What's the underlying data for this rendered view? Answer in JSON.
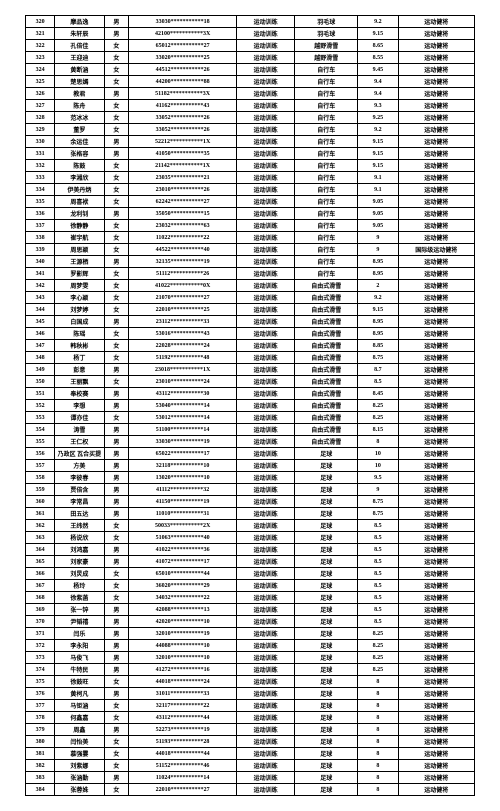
{
  "table": {
    "columns": [
      "c0",
      "c1",
      "c2",
      "c3",
      "c4",
      "c5",
      "c6",
      "c7"
    ],
    "rows": [
      [
        "320",
        "摩品逸",
        "男",
        "33030***********18",
        "运动训练",
        "羽毛球",
        "9.2",
        "运动健将"
      ],
      [
        "321",
        "朱轩辰",
        "男",
        "42100***********3X",
        "运动训练",
        "羽毛球",
        "9.15",
        "运动健将"
      ],
      [
        "322",
        "孔倍佳",
        "女",
        "65012***********27",
        "运动训练",
        "越野滑雪",
        "8.65",
        "运动健将"
      ],
      [
        "323",
        "王迎迪",
        "女",
        "33020***********25",
        "运动训练",
        "越野滑雪",
        "8.55",
        "运动健将"
      ],
      [
        "324",
        "黄断涵",
        "女",
        "44512***********26",
        "运动训练",
        "自行车",
        "9.45",
        "运动健将"
      ],
      [
        "325",
        "楚思嫣",
        "女",
        "44200***********88",
        "运动训练",
        "自行车",
        "9.4",
        "运动健将"
      ],
      [
        "326",
        "教君",
        "男",
        "51182***********3X",
        "运动训练",
        "自行车",
        "9.4",
        "运动健将"
      ],
      [
        "327",
        "陈舟",
        "女",
        "41162***********43",
        "运动训练",
        "自行车",
        "9.3",
        "运动健将"
      ],
      [
        "328",
        "范冰冰",
        "女",
        "33052***********26",
        "运动训练",
        "自行车",
        "9.25",
        "运动健将"
      ],
      [
        "329",
        "董罗",
        "女",
        "33052***********26",
        "运动训练",
        "自行车",
        "9.2",
        "运动健将"
      ],
      [
        "330",
        "余运佳",
        "男",
        "52212***********1X",
        "运动训练",
        "自行车",
        "9.15",
        "运动健将"
      ],
      [
        "331",
        "张格容",
        "男",
        "41050***********35",
        "运动训练",
        "自行车",
        "9.15",
        "运动健将"
      ],
      [
        "332",
        "陈鼓",
        "女",
        "21142***********1X",
        "运动训练",
        "自行车",
        "9.15",
        "运动健将"
      ],
      [
        "333",
        "李湘欣",
        "女",
        "23035***********21",
        "运动训练",
        "自行车",
        "9.1",
        "运动健将"
      ],
      [
        "334",
        "伊美丹炳",
        "女",
        "23010***********26",
        "运动训练",
        "自行车",
        "9.1",
        "运动健将"
      ],
      [
        "335",
        "周喜袱",
        "女",
        "62242***********27",
        "运动训练",
        "自行车",
        "9.05",
        "运动健将"
      ],
      [
        "336",
        "龙利钊",
        "男",
        "35050***********15",
        "运动训练",
        "自行车",
        "9.05",
        "运动健将"
      ],
      [
        "337",
        "徐静静",
        "女",
        "23032***********63",
        "运动训练",
        "自行车",
        "9.05",
        "运动健将"
      ],
      [
        "338",
        "崔宇航",
        "女",
        "11022***********22",
        "运动训练",
        "自行车",
        "9",
        "运动健将"
      ],
      [
        "339",
        "周思颖",
        "女",
        "44522***********40",
        "运动训练",
        "自行车",
        "9",
        "国际级运动健将"
      ],
      [
        "340",
        "王源栖",
        "男",
        "32135***********19",
        "运动训练",
        "自行车",
        "8.95",
        "运动健将"
      ],
      [
        "341",
        "罗影辉",
        "女",
        "51112***********26",
        "运动训练",
        "自行车",
        "8.95",
        "运动健将"
      ],
      [
        "342",
        "周梦雯",
        "女",
        "41022***********0X",
        "运动训练",
        "自由式滑雪",
        "2",
        "运动健将"
      ],
      [
        "343",
        "李心颖",
        "女",
        "21070***********27",
        "运动训练",
        "自由式滑雪",
        "9.2",
        "运动健将"
      ],
      [
        "344",
        "刘梦婷",
        "女",
        "22010***********25",
        "运动训练",
        "自由式滑雪",
        "9.15",
        "运动健将"
      ],
      [
        "345",
        "白国成",
        "男",
        "23112***********33",
        "运动训练",
        "自由式滑雪",
        "8.95",
        "运动健将"
      ],
      [
        "346",
        "陈瑶",
        "女",
        "53016***********43",
        "运动训练",
        "自由式滑雪",
        "8.95",
        "运动健将"
      ],
      [
        "347",
        "韩秋彬",
        "女",
        "22028***********24",
        "运动训练",
        "自由式滑雪",
        "8.85",
        "运动健将"
      ],
      [
        "348",
        "杨丁",
        "女",
        "51192***********48",
        "运动训练",
        "自由式滑雪",
        "8.75",
        "运动健将"
      ],
      [
        "349",
        "彭意",
        "男",
        "23018***********1X",
        "运动训练",
        "自由式滑雪",
        "8.7",
        "运动健将"
      ],
      [
        "350",
        "王丽飘",
        "女",
        "23010***********24",
        "运动训练",
        "自由式滑雪",
        "8.5",
        "运动健将"
      ],
      [
        "351",
        "奉校赛",
        "男",
        "43112***********30",
        "运动训练",
        "自由式滑雪",
        "8.45",
        "运动健将"
      ],
      [
        "352",
        "李想",
        "男",
        "53040***********14",
        "运动训练",
        "自由式滑雪",
        "8.25",
        "运动健将"
      ],
      [
        "353",
        "谭亦佳",
        "女",
        "53012***********14",
        "运动训练",
        "自由式滑雪",
        "8.25",
        "运动健将"
      ],
      [
        "354",
        "涛雪",
        "男",
        "51100***********14",
        "运动训练",
        "自由式滑雪",
        "8.15",
        "运动健将"
      ],
      [
        "355",
        "王仁权",
        "男",
        "33030***********19",
        "运动训练",
        "自由式滑雪",
        "8",
        "运动健将"
      ],
      [
        "356",
        "乃政区 瓦合买提",
        "男",
        "65022***********17",
        "运动训练",
        "足球",
        "10",
        "运动健将"
      ],
      [
        "357",
        "方美",
        "男",
        "32118***********10",
        "运动训练",
        "足球",
        "10",
        "运动健将"
      ],
      [
        "358",
        "李彼春",
        "男",
        "13020***********10",
        "运动训练",
        "足球",
        "9.5",
        "运动健将"
      ],
      [
        "359",
        "贾倍含",
        "男",
        "41112***********32",
        "运动训练",
        "足球",
        "9",
        "运动健将"
      ],
      [
        "360",
        "李常昌",
        "男",
        "41150***********19",
        "运动训练",
        "足球",
        "8.75",
        "运动健将"
      ],
      [
        "361",
        "田五达",
        "男",
        "11010***********31",
        "运动训练",
        "足球",
        "8.75",
        "运动健将"
      ],
      [
        "362",
        "王纬然",
        "女",
        "50033***********2X",
        "运动训练",
        "足球",
        "8.5",
        "运动健将"
      ],
      [
        "363",
        "杨说欣",
        "女",
        "51063***********40",
        "运动训练",
        "足球",
        "8.5",
        "运动健将"
      ],
      [
        "364",
        "刘鸿嘉",
        "男",
        "41022***********36",
        "运动训练",
        "足球",
        "8.5",
        "运动健将"
      ],
      [
        "365",
        "刘家豪",
        "男",
        "41072***********17",
        "运动训练",
        "足球",
        "8.5",
        "运动健将"
      ],
      [
        "366",
        "刘炅成",
        "女",
        "65010***********44",
        "运动训练",
        "足球",
        "8.5",
        "运动健将"
      ],
      [
        "367",
        "杨玲",
        "女",
        "36020***********29",
        "运动训练",
        "足球",
        "8.5",
        "运动健将"
      ],
      [
        "368",
        "徐紫菡",
        "女",
        "34032***********22",
        "运动训练",
        "足球",
        "8.5",
        "运动健将"
      ],
      [
        "369",
        "张一锌",
        "男",
        "42088***********13",
        "运动训练",
        "足球",
        "8.5",
        "运动健将"
      ],
      [
        "370",
        "尹韬禧",
        "男",
        "42020***********10",
        "运动训练",
        "足球",
        "8.5",
        "运动健将"
      ],
      [
        "371",
        "闫乐",
        "男",
        "32010***********19",
        "运动训练",
        "足球",
        "8.25",
        "运动健将"
      ],
      [
        "372",
        "李永阳",
        "男",
        "44088***********10",
        "运动训练",
        "足球",
        "8.25",
        "运动健将"
      ],
      [
        "373",
        "马俊飞",
        "男",
        "32010***********10",
        "运动训练",
        "足球",
        "8.25",
        "运动健将"
      ],
      [
        "374",
        "牛特民",
        "男",
        "41272***********16",
        "运动训练",
        "足球",
        "8.25",
        "运动健将"
      ],
      [
        "375",
        "徐鼓旺",
        "女",
        "44018***********24",
        "运动训练",
        "足球",
        "8",
        "运动健将"
      ],
      [
        "376",
        "黄柯凡",
        "男",
        "31011***********33",
        "运动训练",
        "足球",
        "8",
        "运动健将"
      ],
      [
        "377",
        "马钜涵",
        "女",
        "32117***********22",
        "运动训练",
        "足球",
        "8",
        "运动健将"
      ],
      [
        "378",
        "何鑫嘉",
        "女",
        "43112***********44",
        "运动训练",
        "足球",
        "8",
        "运动健将"
      ],
      [
        "379",
        "周鑫",
        "男",
        "52273***********19",
        "运动训练",
        "足球",
        "8",
        "运动健将"
      ],
      [
        "380",
        "闫怡美",
        "女",
        "51193***********28",
        "运动训练",
        "足球",
        "8",
        "运动健将"
      ],
      [
        "381",
        "慕强霎",
        "女",
        "44018***********44",
        "运动训练",
        "足球",
        "8",
        "运动健将"
      ],
      [
        "382",
        "刘紫娜",
        "女",
        "51152***********46",
        "运动训练",
        "足球",
        "8",
        "运动健将"
      ],
      [
        "383",
        "张涵勤",
        "男",
        "11024***********14",
        "运动训练",
        "足球",
        "8",
        "运动健将"
      ],
      [
        "384",
        "张蓉姝",
        "女",
        "22010***********27",
        "运动训练",
        "足球",
        "8",
        "运动健将"
      ]
    ]
  }
}
